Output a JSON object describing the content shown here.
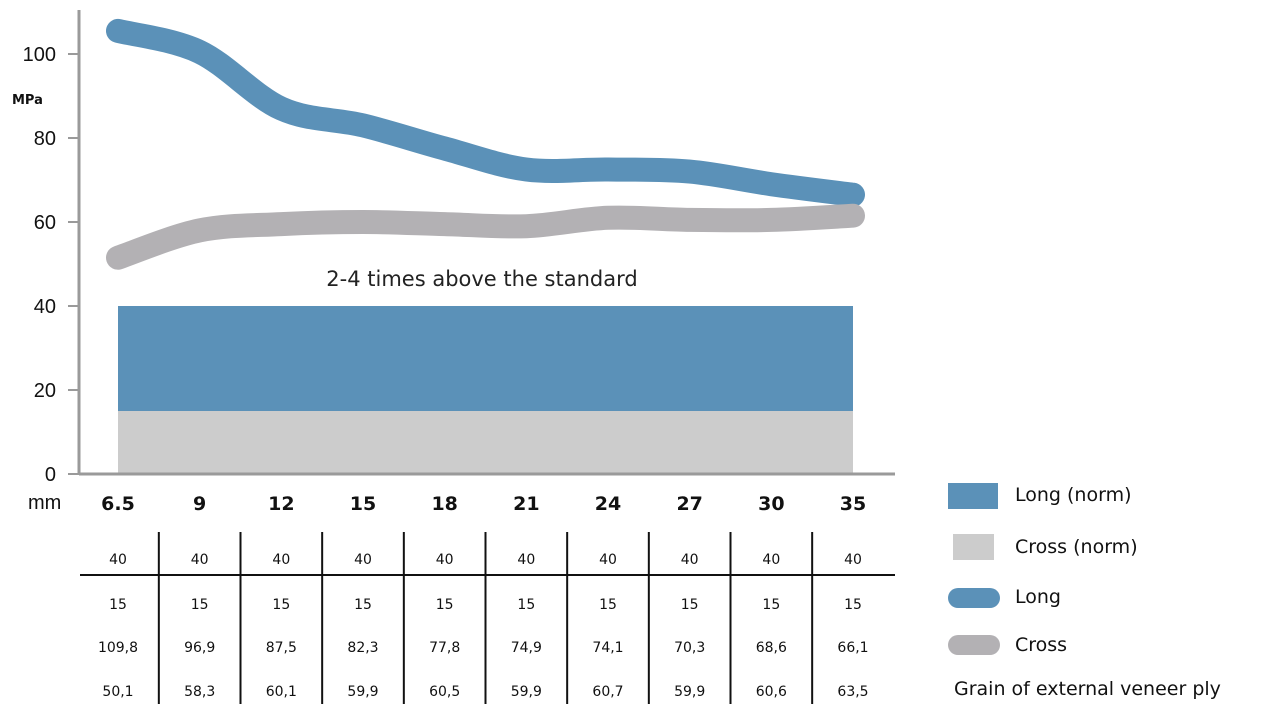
{
  "chart_data": {
    "type": "line",
    "ylabel": "MPa",
    "xlabel": "mm",
    "ylim": [
      0,
      110
    ],
    "y_ticks": [
      "0",
      "20",
      "40",
      "60",
      "80",
      "100"
    ],
    "categories": [
      "6.5",
      "9",
      "12",
      "15",
      "18",
      "21",
      "24",
      "27",
      "30",
      "35"
    ],
    "series": [
      {
        "name": "Long",
        "style": "curve",
        "color": "#5b91b8",
        "values": [
          105.5,
          100.5,
          87.0,
          83.0,
          77.5,
          72.5,
          72.5,
          72.0,
          69.0,
          66.5
        ]
      },
      {
        "name": "Cross",
        "style": "curve",
        "color": "#b3b1b4",
        "values": [
          51.5,
          58.0,
          59.5,
          60.0,
          59.5,
          59.0,
          61.0,
          60.5,
          60.5,
          61.5
        ]
      },
      {
        "name": "Long (norm)",
        "style": "area",
        "color": "#5b91b8",
        "values": [
          40,
          40,
          40,
          40,
          40,
          40,
          40,
          40,
          40,
          40
        ]
      },
      {
        "name": "Cross (norm)",
        "style": "area",
        "color": "#cccccc",
        "values": [
          15,
          15,
          15,
          15,
          15,
          15,
          15,
          15,
          15,
          15
        ]
      }
    ],
    "annotation": "2-4 times above the standard",
    "table": {
      "rows": [
        [
          "40",
          "40",
          "40",
          "40",
          "40",
          "40",
          "40",
          "40",
          "40",
          "40"
        ],
        [
          "15",
          "15",
          "15",
          "15",
          "15",
          "15",
          "15",
          "15",
          "15",
          "15"
        ],
        [
          "109,8",
          "96,9",
          "87,5",
          "82,3",
          "77,8",
          "74,9",
          "74,1",
          "70,3",
          "68,6",
          "66,1"
        ],
        [
          "50,1",
          "58,3",
          "60,1",
          "59,9",
          "60,5",
          "59,9",
          "60,7",
          "59,9",
          "60,6",
          "63,5"
        ]
      ]
    },
    "legend": {
      "position": "bottom-right",
      "items": [
        {
          "label": "Long (norm)",
          "shape": "square",
          "color": "#5b91b8"
        },
        {
          "label": "Cross (norm)",
          "shape": "square",
          "color": "#cccccc"
        },
        {
          "label": "Long",
          "shape": "pill",
          "color": "#5b91b8"
        },
        {
          "label": "Cross",
          "shape": "pill",
          "color": "#b3b1b4"
        }
      ],
      "footer": "Grain of external veneer ply"
    }
  }
}
